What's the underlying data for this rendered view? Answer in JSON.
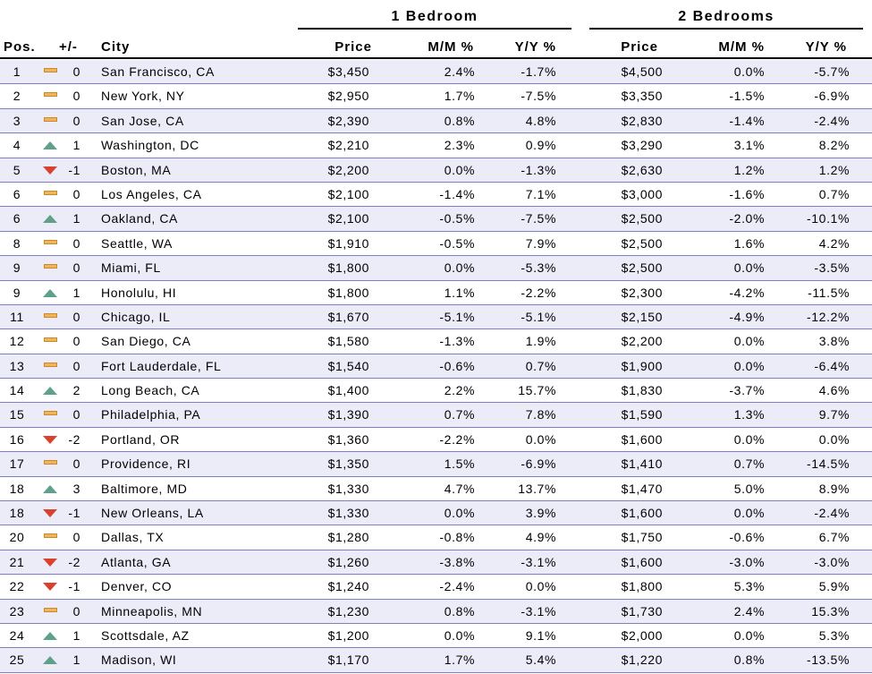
{
  "groups": {
    "one_bedroom": "1 Bedroom",
    "two_bedrooms": "2 Bedrooms"
  },
  "columns": {
    "pos": "Pos.",
    "change": "+/-",
    "city": "City",
    "price_1br": "Price",
    "mm_1br": "M/M %",
    "yy_1br": "Y/Y %",
    "price_2br": "Price",
    "mm_2br": "M/M %",
    "yy_2br": "Y/Y %"
  },
  "indicator_colors": {
    "up": "#5ea08a",
    "down": "#d9412e",
    "flat": "#f2b458"
  },
  "rows": [
    {
      "pos": "1",
      "trend": "flat",
      "change": "0",
      "city": "San Francisco, CA",
      "p1": "$3,450",
      "m1": "2.4%",
      "y1": "-1.7%",
      "p2": "$4,500",
      "m2": "0.0%",
      "y2": "-5.7%"
    },
    {
      "pos": "2",
      "trend": "flat",
      "change": "0",
      "city": "New York, NY",
      "p1": "$2,950",
      "m1": "1.7%",
      "y1": "-7.5%",
      "p2": "$3,350",
      "m2": "-1.5%",
      "y2": "-6.9%"
    },
    {
      "pos": "3",
      "trend": "flat",
      "change": "0",
      "city": "San Jose, CA",
      "p1": "$2,390",
      "m1": "0.8%",
      "y1": "4.8%",
      "p2": "$2,830",
      "m2": "-1.4%",
      "y2": "-2.4%"
    },
    {
      "pos": "4",
      "trend": "up",
      "change": "1",
      "city": "Washington, DC",
      "p1": "$2,210",
      "m1": "2.3%",
      "y1": "0.9%",
      "p2": "$3,290",
      "m2": "3.1%",
      "y2": "8.2%"
    },
    {
      "pos": "5",
      "trend": "down",
      "change": "-1",
      "city": "Boston, MA",
      "p1": "$2,200",
      "m1": "0.0%",
      "y1": "-1.3%",
      "p2": "$2,630",
      "m2": "1.2%",
      "y2": "1.2%"
    },
    {
      "pos": "6",
      "trend": "flat",
      "change": "0",
      "city": "Los Angeles, CA",
      "p1": "$2,100",
      "m1": "-1.4%",
      "y1": "7.1%",
      "p2": "$3,000",
      "m2": "-1.6%",
      "y2": "0.7%"
    },
    {
      "pos": "6",
      "trend": "up",
      "change": "1",
      "city": "Oakland, CA",
      "p1": "$2,100",
      "m1": "-0.5%",
      "y1": "-7.5%",
      "p2": "$2,500",
      "m2": "-2.0%",
      "y2": "-10.1%"
    },
    {
      "pos": "8",
      "trend": "flat",
      "change": "0",
      "city": "Seattle, WA",
      "p1": "$1,910",
      "m1": "-0.5%",
      "y1": "7.9%",
      "p2": "$2,500",
      "m2": "1.6%",
      "y2": "4.2%"
    },
    {
      "pos": "9",
      "trend": "flat",
      "change": "0",
      "city": "Miami, FL",
      "p1": "$1,800",
      "m1": "0.0%",
      "y1": "-5.3%",
      "p2": "$2,500",
      "m2": "0.0%",
      "y2": "-3.5%"
    },
    {
      "pos": "9",
      "trend": "up",
      "change": "1",
      "city": "Honolulu, HI",
      "p1": "$1,800",
      "m1": "1.1%",
      "y1": "-2.2%",
      "p2": "$2,300",
      "m2": "-4.2%",
      "y2": "-11.5%"
    },
    {
      "pos": "11",
      "trend": "flat",
      "change": "0",
      "city": "Chicago, IL",
      "p1": "$1,670",
      "m1": "-5.1%",
      "y1": "-5.1%",
      "p2": "$2,150",
      "m2": "-4.9%",
      "y2": "-12.2%"
    },
    {
      "pos": "12",
      "trend": "flat",
      "change": "0",
      "city": "San Diego, CA",
      "p1": "$1,580",
      "m1": "-1.3%",
      "y1": "1.9%",
      "p2": "$2,200",
      "m2": "0.0%",
      "y2": "3.8%"
    },
    {
      "pos": "13",
      "trend": "flat",
      "change": "0",
      "city": "Fort Lauderdale, FL",
      "p1": "$1,540",
      "m1": "-0.6%",
      "y1": "0.7%",
      "p2": "$1,900",
      "m2": "0.0%",
      "y2": "-6.4%"
    },
    {
      "pos": "14",
      "trend": "up",
      "change": "2",
      "city": "Long Beach, CA",
      "p1": "$1,400",
      "m1": "2.2%",
      "y1": "15.7%",
      "p2": "$1,830",
      "m2": "-3.7%",
      "y2": "4.6%"
    },
    {
      "pos": "15",
      "trend": "flat",
      "change": "0",
      "city": "Philadelphia, PA",
      "p1": "$1,390",
      "m1": "0.7%",
      "y1": "7.8%",
      "p2": "$1,590",
      "m2": "1.3%",
      "y2": "9.7%"
    },
    {
      "pos": "16",
      "trend": "down",
      "change": "-2",
      "city": "Portland, OR",
      "p1": "$1,360",
      "m1": "-2.2%",
      "y1": "0.0%",
      "p2": "$1,600",
      "m2": "0.0%",
      "y2": "0.0%"
    },
    {
      "pos": "17",
      "trend": "flat",
      "change": "0",
      "city": "Providence, RI",
      "p1": "$1,350",
      "m1": "1.5%",
      "y1": "-6.9%",
      "p2": "$1,410",
      "m2": "0.7%",
      "y2": "-14.5%"
    },
    {
      "pos": "18",
      "trend": "up",
      "change": "3",
      "city": "Baltimore, MD",
      "p1": "$1,330",
      "m1": "4.7%",
      "y1": "13.7%",
      "p2": "$1,470",
      "m2": "5.0%",
      "y2": "8.9%"
    },
    {
      "pos": "18",
      "trend": "down",
      "change": "-1",
      "city": "New Orleans, LA",
      "p1": "$1,330",
      "m1": "0.0%",
      "y1": "3.9%",
      "p2": "$1,600",
      "m2": "0.0%",
      "y2": "-2.4%"
    },
    {
      "pos": "20",
      "trend": "flat",
      "change": "0",
      "city": "Dallas, TX",
      "p1": "$1,280",
      "m1": "-0.8%",
      "y1": "4.9%",
      "p2": "$1,750",
      "m2": "-0.6%",
      "y2": "6.7%"
    },
    {
      "pos": "21",
      "trend": "down",
      "change": "-2",
      "city": "Atlanta, GA",
      "p1": "$1,260",
      "m1": "-3.8%",
      "y1": "-3.1%",
      "p2": "$1,600",
      "m2": "-3.0%",
      "y2": "-3.0%"
    },
    {
      "pos": "22",
      "trend": "down",
      "change": "-1",
      "city": "Denver, CO",
      "p1": "$1,240",
      "m1": "-2.4%",
      "y1": "0.0%",
      "p2": "$1,800",
      "m2": "5.3%",
      "y2": "5.9%"
    },
    {
      "pos": "23",
      "trend": "flat",
      "change": "0",
      "city": "Minneapolis, MN",
      "p1": "$1,230",
      "m1": "0.8%",
      "y1": "-3.1%",
      "p2": "$1,730",
      "m2": "2.4%",
      "y2": "15.3%"
    },
    {
      "pos": "24",
      "trend": "up",
      "change": "1",
      "city": "Scottsdale, AZ",
      "p1": "$1,200",
      "m1": "0.0%",
      "y1": "9.1%",
      "p2": "$2,000",
      "m2": "0.0%",
      "y2": "5.3%"
    },
    {
      "pos": "25",
      "trend": "up",
      "change": "1",
      "city": "Madison, WI",
      "p1": "$1,170",
      "m1": "1.7%",
      "y1": "5.4%",
      "p2": "$1,220",
      "m2": "0.8%",
      "y2": "-13.5%"
    }
  ]
}
